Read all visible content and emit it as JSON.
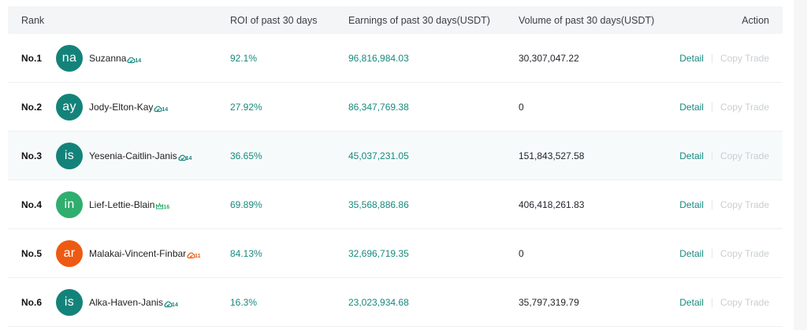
{
  "header": {
    "rank": "Rank",
    "roi": "ROI of past 30 days",
    "earnings": "Earnings of past 30 days(USDT)",
    "volume": "Volume of past 30 days(USDT)",
    "action": "Action"
  },
  "rows": [
    {
      "rank": "No.1",
      "avatar": "na",
      "avatar_color": "#13837a",
      "name": "Suzanna",
      "badge_icon": "cloud-check-badge-icon",
      "badge_color": "#17897e",
      "badge_num": "14",
      "roi": "92.1%",
      "earnings": "96,816,984.03",
      "volume": "30,307,047.22",
      "detail": "Detail",
      "copy": "Copy Trade"
    },
    {
      "rank": "No.2",
      "avatar": "ay",
      "avatar_color": "#13837a",
      "name": "Jody-Elton-Kay",
      "badge_icon": "cloud-check-badge-icon",
      "badge_color": "#17897e",
      "badge_num": "14",
      "roi": "27.92%",
      "earnings": "86,347,769.38",
      "volume": "0",
      "detail": "Detail",
      "copy": "Copy Trade"
    },
    {
      "rank": "No.3",
      "avatar": "is",
      "avatar_color": "#13837a",
      "name": "Yesenia-Caitlin-Janis",
      "badge_icon": "cloud-check-badge-icon",
      "badge_color": "#17897e",
      "badge_num": "14",
      "roi": "36.65%",
      "earnings": "45,037,231.05",
      "volume": "151,843,527.58",
      "detail": "Detail",
      "copy": "Copy Trade"
    },
    {
      "rank": "No.4",
      "avatar": "in",
      "avatar_color": "#2fae6e",
      "name": "Lief-Lettie-Blain",
      "badge_icon": "crown-badge-icon",
      "badge_color": "#2fae6e",
      "badge_num": "16",
      "roi": "69.89%",
      "earnings": "35,568,886.86",
      "volume": "406,418,261.83",
      "detail": "Detail",
      "copy": "Copy Trade"
    },
    {
      "rank": "No.5",
      "avatar": "ar",
      "avatar_color": "#ee5a12",
      "name": "Malakai-Vincent-Finbar",
      "badge_icon": "cloud-check-badge-icon",
      "badge_color": "#ee5a12",
      "badge_num": "11",
      "roi": "84.13%",
      "earnings": "32,696,719.35",
      "volume": "0",
      "detail": "Detail",
      "copy": "Copy Trade"
    },
    {
      "rank": "No.6",
      "avatar": "is",
      "avatar_color": "#13837a",
      "name": "Alka-Haven-Janis",
      "badge_icon": "cloud-check-badge-icon",
      "badge_color": "#17897e",
      "badge_num": "14",
      "roi": "16.3%",
      "earnings": "23,023,934.68",
      "volume": "35,797,319.79",
      "detail": "Detail",
      "copy": "Copy Trade"
    }
  ]
}
